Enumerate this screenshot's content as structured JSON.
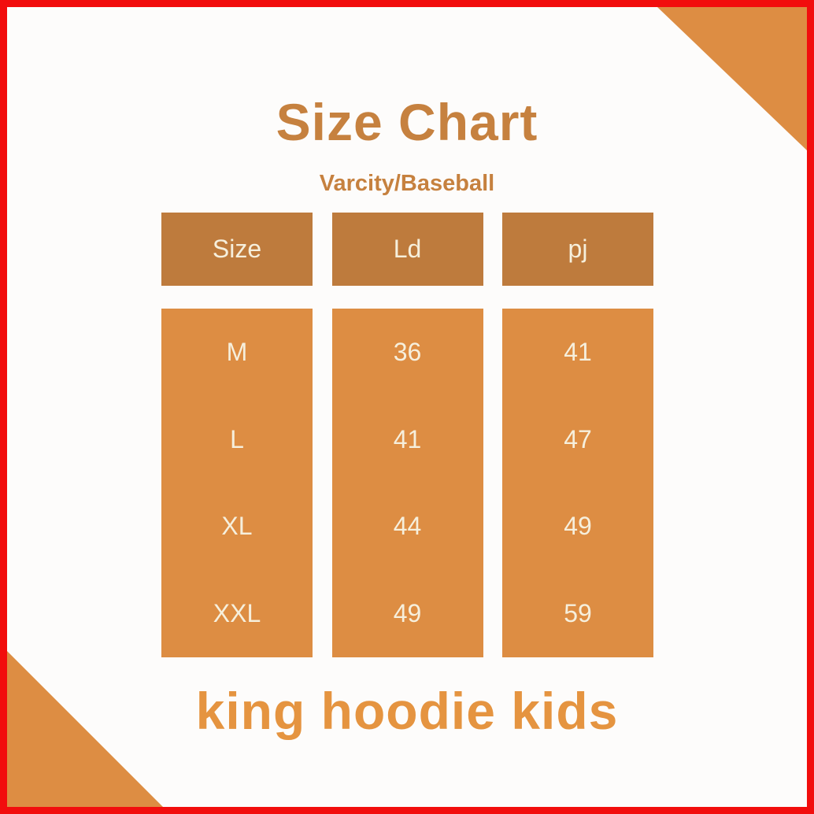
{
  "page": {
    "title": "Size Chart",
    "subtitle": "Varcity/Baseball",
    "footer": "king hoodie kids"
  },
  "table": {
    "headers": [
      "Size",
      "Ld",
      "pj"
    ],
    "rows": [
      {
        "size": "M",
        "ld": "36",
        "pj": "41"
      },
      {
        "size": "L",
        "ld": "41",
        "pj": "47"
      },
      {
        "size": "XL",
        "ld": "44",
        "pj": "49"
      },
      {
        "size": "XXL",
        "ld": "49",
        "pj": "59"
      }
    ]
  },
  "chart_data": {
    "type": "table",
    "title": "Size Chart",
    "subtitle": "Varcity/Baseball",
    "columns": [
      "Size",
      "Ld",
      "pj"
    ],
    "rows": [
      [
        "M",
        36,
        41
      ],
      [
        "L",
        41,
        47
      ],
      [
        "XL",
        44,
        49
      ],
      [
        "XXL",
        49,
        59
      ]
    ],
    "footer": "king hoodie kids"
  },
  "colors": {
    "border_red": "#F20D0D",
    "background": "#FDFCFB",
    "header_brown": "#BE7B3D",
    "cell_orange": "#DD8D43",
    "title_brown": "#C6813F",
    "footer_orange": "#E59440",
    "text_cream": "#F6EFDC"
  }
}
